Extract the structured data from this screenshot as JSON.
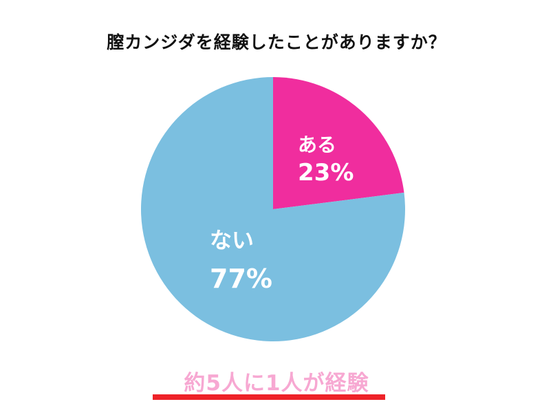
{
  "chart_data": {
    "type": "pie",
    "title": "膣カンジダを経験したことがありますか？",
    "series": [
      {
        "name": "ある",
        "value": 23,
        "label": "23%",
        "color": "#f02d9e"
      },
      {
        "name": "ない",
        "value": 77,
        "label": "77%",
        "color": "#7bbfe0"
      }
    ],
    "start": "12 o'clock",
    "direction": "clockwise",
    "legend": "none"
  },
  "caption": {
    "text": "約5人に1人が経験",
    "text_color": "#f7a8d2",
    "underline_color": "#ee2228"
  }
}
